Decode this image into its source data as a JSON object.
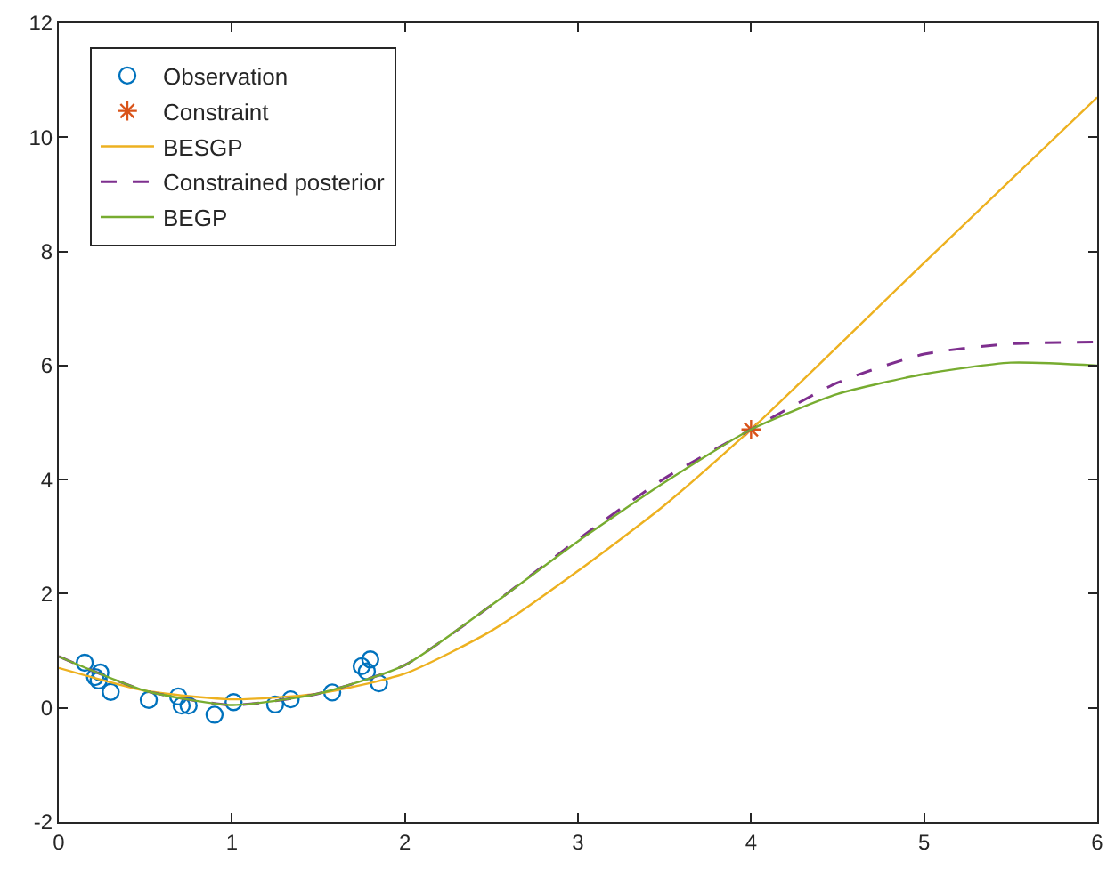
{
  "chart_data": {
    "type": "line",
    "xlim": [
      0,
      6
    ],
    "ylim": [
      -2,
      12
    ],
    "xticks": [
      0,
      1,
      2,
      3,
      4,
      5,
      6
    ],
    "yticks": [
      -2,
      0,
      2,
      4,
      6,
      8,
      10,
      12
    ],
    "legend": "top left",
    "series": [
      {
        "name": "Observation",
        "type": "scatter",
        "marker": "circle",
        "color": "#0072bd",
        "x": [
          0.15,
          0.21,
          0.24,
          0.23,
          0.3,
          0.52,
          0.69,
          0.71,
          0.75,
          0.9,
          1.01,
          1.25,
          1.34,
          1.58,
          1.75,
          1.8,
          1.78,
          1.85
        ],
        "values": [
          0.79,
          0.54,
          0.62,
          0.48,
          0.28,
          0.14,
          0.2,
          0.04,
          0.04,
          -0.12,
          0.1,
          0.06,
          0.15,
          0.27,
          0.73,
          0.85,
          0.64,
          0.43
        ]
      },
      {
        "name": "Constraint",
        "type": "scatter",
        "marker": "cross",
        "color": "#d95319",
        "x": [
          4
        ],
        "values": [
          4.88
        ]
      },
      {
        "name": "BESGP",
        "line_style": "solid",
        "color": "#edb120",
        "x": [
          0,
          0.5,
          1,
          1.5,
          2,
          2.5,
          3,
          3.5,
          4,
          5,
          6
        ],
        "values": [
          0.7,
          0.3,
          0.15,
          0.25,
          0.6,
          1.35,
          2.4,
          3.55,
          4.88,
          7.8,
          10.7
        ]
      },
      {
        "name": "Constrained posterior",
        "line_style": "dashed",
        "color": "#7e2f8e",
        "x": [
          0,
          0.5,
          1,
          1.5,
          2,
          2.5,
          3,
          3.5,
          4,
          4.5,
          5,
          5.5,
          6
        ],
        "values": [
          0.9,
          0.3,
          0.05,
          0.25,
          0.75,
          1.8,
          2.95,
          4.02,
          4.88,
          5.7,
          6.2,
          6.38,
          6.41
        ]
      },
      {
        "name": "BEGP",
        "line_style": "solid",
        "color": "#77ac30",
        "x": [
          0,
          0.5,
          1,
          1.5,
          2,
          2.5,
          3,
          3.5,
          4,
          4.5,
          5,
          5.5,
          6
        ],
        "values": [
          0.9,
          0.3,
          0.05,
          0.25,
          0.75,
          1.8,
          2.92,
          3.95,
          4.88,
          5.5,
          5.85,
          6.05,
          6.0
        ]
      }
    ]
  }
}
